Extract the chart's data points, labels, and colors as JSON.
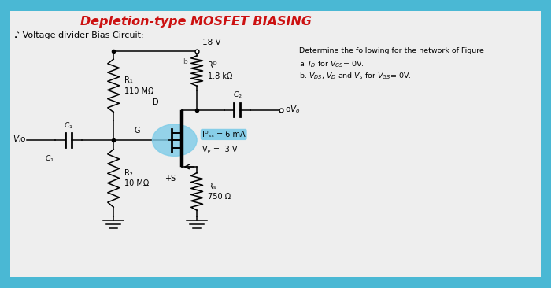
{
  "title": "Depletion-type MOSFET BIASING",
  "title_color": "#cc1111",
  "bg_outer": "#4ab8d4",
  "bg_inner": "#eeeeee",
  "subtitle": "♪ Voltage divider Bias Circuit:",
  "VDD": "18 V",
  "R1_label": "R₁",
  "R1_val": "110 MΩ",
  "R2_label": "R₂",
  "R2_val": "10 MΩ",
  "RD_label": "Rᴰ",
  "RD_val": "1.8 kΩ",
  "RS_label": "Rₛ",
  "RS_val": "750 Ω",
  "IDSS_text": "Iᴰₛₛ = 6 mA",
  "VP_text": "Vₚ = -3 V",
  "mosfet_color": "#7ecce8",
  "det_line0": "Determine the following for the network of Figure",
  "det_line1": "a. $I_D$ for $V_{GS}$= 0V.",
  "det_line2": "b. $V_{DS}$, $V_D$ and $V_s$ for $V_{GS}$= 0V.",
  "label_D": "D",
  "label_G": "G",
  "label_S": "+S",
  "label_b": "b",
  "label_Vi": "$V_i$",
  "label_Vo": "$V_o$",
  "label_C1": "$C_1$",
  "label_C2": "$C_2$"
}
